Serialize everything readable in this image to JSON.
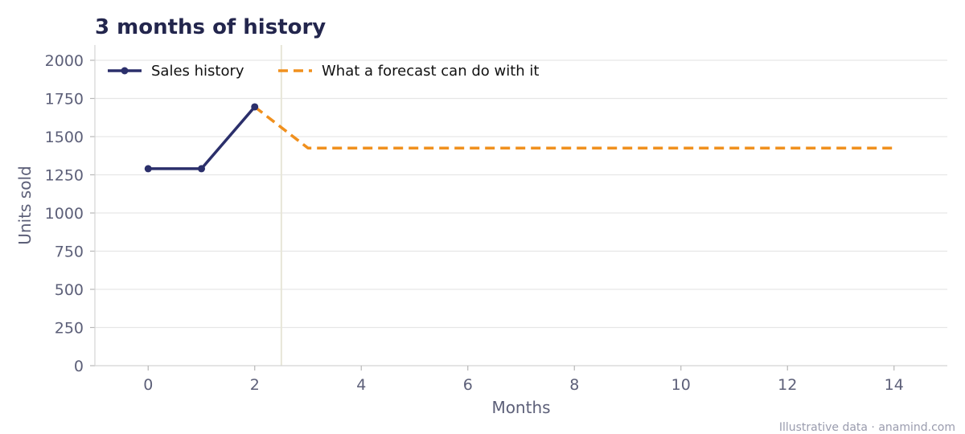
{
  "chart_data": {
    "type": "line",
    "title": "3 months of history",
    "xlabel": "Months",
    "ylabel": "Units sold",
    "xlim": [
      -1,
      15
    ],
    "ylim": [
      0,
      2100
    ],
    "x_ticks": [
      0,
      2,
      4,
      6,
      8,
      10,
      12,
      14
    ],
    "y_ticks": [
      0,
      250,
      500,
      750,
      1000,
      1250,
      1500,
      1750,
      2000
    ],
    "grid": "horizontal",
    "legend_position": "top-left",
    "forecast_start_marker_x": 2.5,
    "series": [
      {
        "name": "Sales history",
        "style": "solid-with-markers",
        "color": "#2b2f6b",
        "x": [
          0,
          1,
          2
        ],
        "y": [
          1290,
          1290,
          1695
        ]
      },
      {
        "name": "What a forecast can do with it",
        "style": "dashed",
        "color": "#f0901e",
        "x": [
          2,
          3,
          4,
          5,
          6,
          7,
          8,
          9,
          10,
          11,
          12,
          13,
          14
        ],
        "y": [
          1695,
          1425,
          1425,
          1425,
          1425,
          1425,
          1425,
          1425,
          1425,
          1425,
          1425,
          1425,
          1425
        ]
      }
    ]
  },
  "footer": "Illustrative data · anamind.com"
}
